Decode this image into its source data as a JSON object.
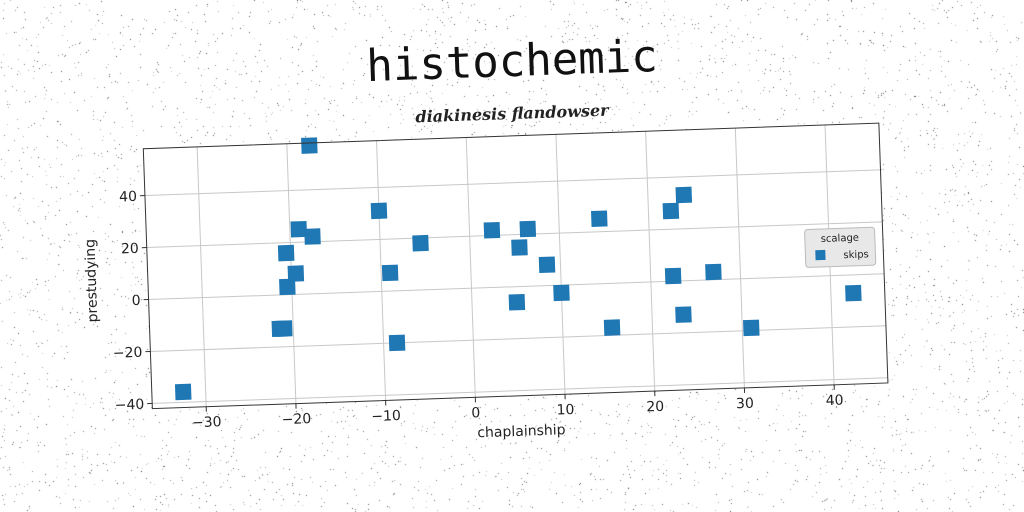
{
  "title": "histochemic",
  "subtitle": "diakinesis flandowser",
  "chart_data": {
    "type": "scatter",
    "xlabel": "chaplainship",
    "ylabel": "prestudying",
    "xlim": [
      -36,
      46
    ],
    "ylim": [
      -42,
      58
    ],
    "xticks": [
      -30,
      -20,
      -10,
      0,
      10,
      20,
      30,
      40
    ],
    "yticks": [
      -40,
      -20,
      0,
      20,
      40
    ],
    "xtick_labels": [
      "−30",
      "−20",
      "−10",
      "0",
      "10",
      "20",
      "30",
      "40"
    ],
    "ytick_labels": [
      "−40",
      "−20",
      "0",
      "20",
      "40"
    ],
    "grid": true,
    "legend": {
      "title": "scalage",
      "placement": "right"
    },
    "series": [
      {
        "name": "skips",
        "color": "#1f77b4",
        "marker": "square",
        "x": [
          -32.5,
          -17.5,
          -20.5,
          -19.0,
          -17.5,
          -10.0,
          -20.5,
          -19.5,
          -21.5,
          -9.0,
          -21.0,
          -8.5,
          -5.5,
          2.5,
          6.5,
          5.5,
          8.5,
          5.0,
          10.0,
          14.5,
          15.5,
          22.5,
          24.0,
          22.5,
          27.0,
          23.5,
          31.0,
          42.5
        ],
        "y": [
          -36,
          57,
          16,
          25,
          22,
          31,
          3,
          8,
          -13,
          7,
          -13,
          -20,
          18,
          22,
          22,
          15,
          8,
          -6,
          -3,
          25,
          -17,
          27,
          33,
          2,
          3,
          -13,
          -19,
          -7
        ]
      }
    ]
  }
}
